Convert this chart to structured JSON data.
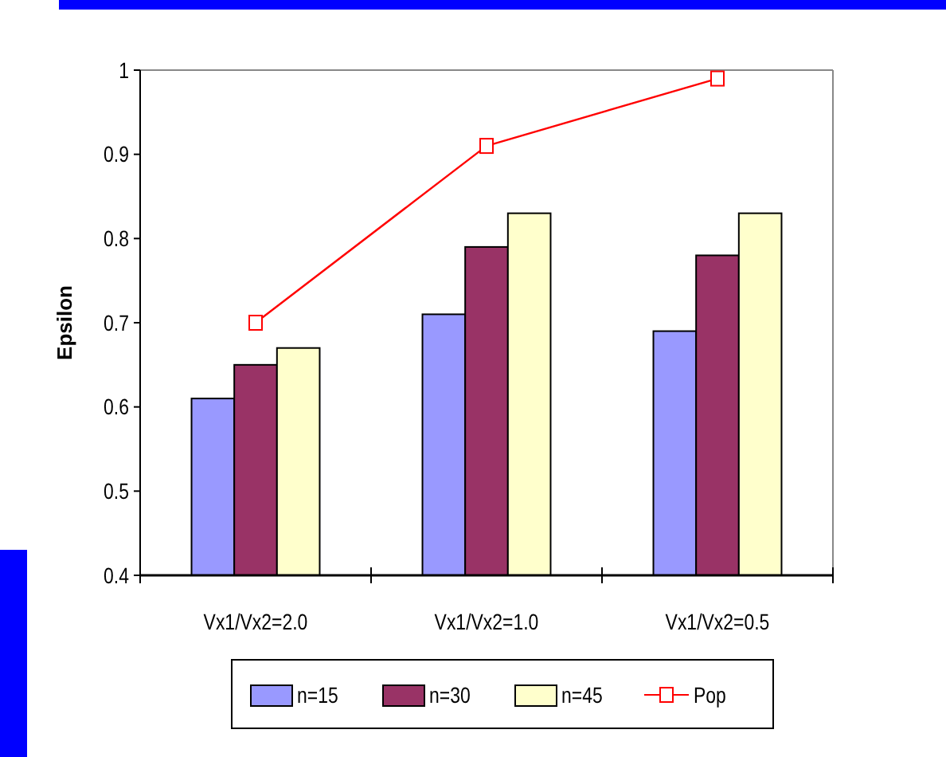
{
  "chart_data": {
    "type": "bar",
    "ylabel": "Epsilon",
    "categories": [
      "Vx1/Vx2=2.0",
      "Vx1/Vx2=1.0",
      "Vx1/Vx2=0.5"
    ],
    "series": [
      {
        "name": "n=15",
        "color": "#9999ff",
        "values": [
          0.61,
          0.71,
          0.69
        ]
      },
      {
        "name": "n=30",
        "color": "#993366",
        "values": [
          0.65,
          0.79,
          0.78
        ]
      },
      {
        "name": "n=45",
        "color": "#ffffcc",
        "values": [
          0.67,
          0.83,
          0.83
        ]
      },
      {
        "name": "Pop",
        "color": "#ff0000",
        "type": "line",
        "marker": "square",
        "values": [
          0.7,
          0.91,
          0.99
        ]
      }
    ],
    "ylim": [
      0.4,
      1
    ],
    "yticks": [
      0.4,
      0.5,
      0.6,
      0.7,
      0.8,
      0.9,
      1
    ],
    "grid": false,
    "legend": "bottom"
  }
}
